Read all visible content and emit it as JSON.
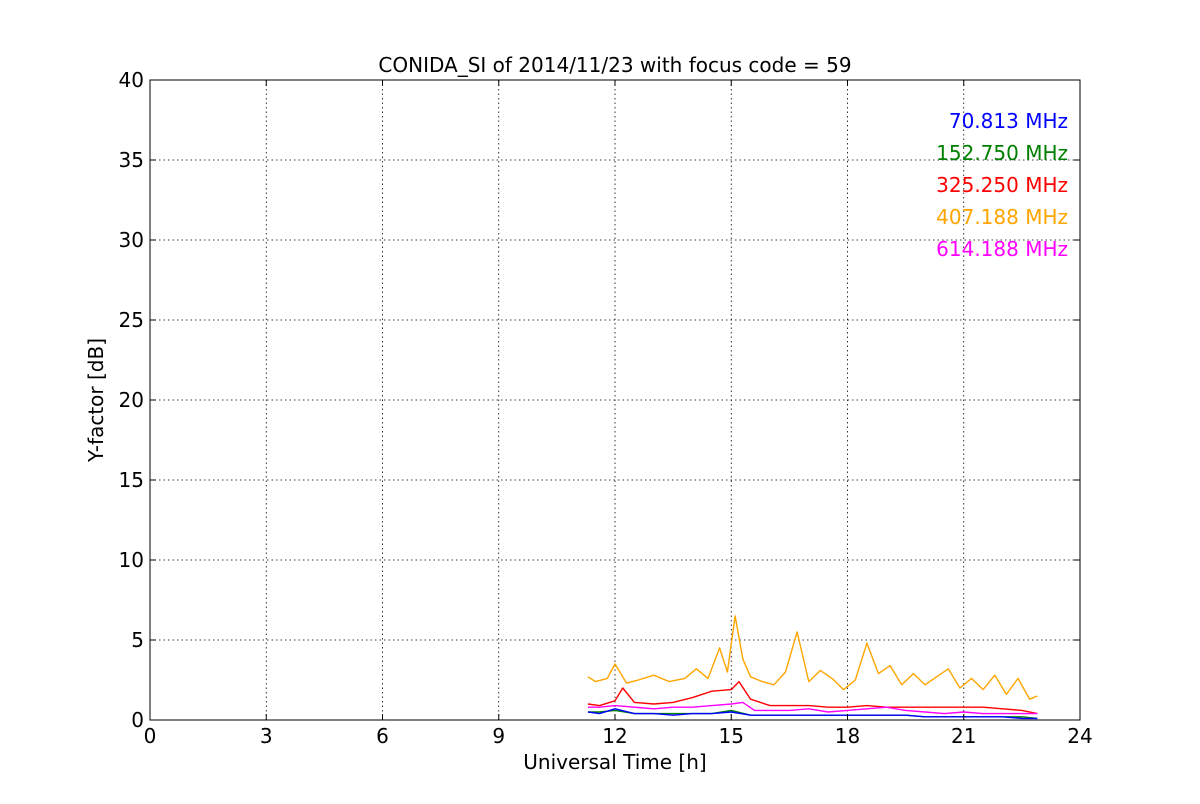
{
  "chart_data": {
    "type": "line",
    "title": "CONIDA_SI of 2014/11/23 with focus code = 59",
    "xlabel": "Universal Time [h]",
    "ylabel": "Y-factor [dB]",
    "xlim": [
      0,
      24
    ],
    "ylim": [
      0,
      40
    ],
    "xticks": [
      0,
      3,
      6,
      9,
      12,
      15,
      18,
      21,
      24
    ],
    "yticks": [
      0,
      5,
      10,
      15,
      20,
      25,
      30,
      35,
      40
    ],
    "grid": true,
    "legend_position": "top-right",
    "series": [
      {
        "name": "70.813 MHz",
        "color": "#0000ff",
        "x": [
          11.3,
          11.6,
          12.0,
          12.5,
          13.0,
          13.5,
          14.0,
          14.5,
          15.0,
          15.5,
          16.0,
          16.5,
          17.0,
          17.5,
          18.0,
          18.5,
          19.0,
          19.5,
          20.0,
          20.5,
          21.0,
          21.5,
          22.0,
          22.5,
          22.9
        ],
        "y": [
          0.5,
          0.4,
          0.7,
          0.4,
          0.4,
          0.3,
          0.4,
          0.4,
          0.5,
          0.3,
          0.3,
          0.3,
          0.3,
          0.3,
          0.3,
          0.3,
          0.3,
          0.3,
          0.2,
          0.2,
          0.2,
          0.2,
          0.2,
          0.1,
          0.1
        ]
      },
      {
        "name": "152.750 MHz",
        "color": "#008000",
        "x": [
          11.3,
          11.6,
          12.0,
          12.5,
          13.0,
          13.5,
          14.0,
          14.5,
          15.0,
          15.5,
          16.0,
          16.5,
          17.0,
          17.5,
          18.0,
          18.5,
          19.0,
          19.5,
          20.0,
          20.5,
          21.0,
          21.5,
          22.0,
          22.5,
          22.9
        ],
        "y": [
          0.5,
          0.5,
          0.6,
          0.4,
          0.4,
          0.4,
          0.4,
          0.4,
          0.6,
          0.3,
          0.3,
          0.3,
          0.3,
          0.3,
          0.3,
          0.3,
          0.3,
          0.3,
          0.2,
          0.2,
          0.2,
          0.2,
          0.2,
          0.2,
          0.1
        ]
      },
      {
        "name": "325.250 MHz",
        "color": "#ff0000",
        "x": [
          11.3,
          11.6,
          12.0,
          12.2,
          12.5,
          13.0,
          13.5,
          14.0,
          14.5,
          15.0,
          15.2,
          15.5,
          16.0,
          16.5,
          17.0,
          17.5,
          18.0,
          18.5,
          19.0,
          19.5,
          20.0,
          20.5,
          21.0,
          21.5,
          22.0,
          22.5,
          22.9
        ],
        "y": [
          1.0,
          0.9,
          1.2,
          2.0,
          1.1,
          1.0,
          1.1,
          1.4,
          1.8,
          1.9,
          2.4,
          1.3,
          0.9,
          0.9,
          0.9,
          0.8,
          0.8,
          0.9,
          0.8,
          0.8,
          0.8,
          0.8,
          0.8,
          0.8,
          0.7,
          0.6,
          0.4
        ]
      },
      {
        "name": "407.188 MHz",
        "color": "#ffa500",
        "x": [
          11.3,
          11.5,
          11.8,
          12.0,
          12.3,
          12.6,
          13.0,
          13.4,
          13.8,
          14.1,
          14.4,
          14.7,
          14.9,
          15.1,
          15.3,
          15.5,
          15.8,
          16.1,
          16.4,
          16.7,
          17.0,
          17.3,
          17.6,
          17.9,
          18.2,
          18.5,
          18.8,
          19.1,
          19.4,
          19.7,
          20.0,
          20.3,
          20.6,
          20.9,
          21.2,
          21.5,
          21.8,
          22.1,
          22.4,
          22.7,
          22.9
        ],
        "y": [
          2.7,
          2.4,
          2.6,
          3.5,
          2.3,
          2.5,
          2.8,
          2.4,
          2.6,
          3.2,
          2.6,
          4.5,
          3.0,
          6.5,
          3.8,
          2.7,
          2.4,
          2.2,
          3.0,
          5.5,
          2.4,
          3.1,
          2.6,
          1.9,
          2.5,
          4.8,
          2.9,
          3.4,
          2.2,
          2.9,
          2.2,
          2.7,
          3.2,
          2.0,
          2.6,
          1.9,
          2.8,
          1.6,
          2.6,
          1.3,
          1.5
        ]
      },
      {
        "name": "614.188 MHz",
        "color": "#ff00ff",
        "x": [
          11.3,
          11.6,
          12.0,
          12.5,
          13.0,
          13.5,
          14.0,
          14.5,
          15.0,
          15.3,
          15.6,
          16.0,
          16.5,
          17.0,
          17.5,
          18.0,
          18.5,
          19.0,
          19.5,
          20.0,
          20.5,
          21.0,
          21.5,
          22.0,
          22.5,
          22.9
        ],
        "y": [
          0.8,
          0.8,
          0.9,
          0.8,
          0.7,
          0.8,
          0.8,
          0.9,
          1.0,
          1.1,
          0.6,
          0.6,
          0.6,
          0.7,
          0.5,
          0.6,
          0.7,
          0.8,
          0.6,
          0.5,
          0.4,
          0.5,
          0.4,
          0.4,
          0.4,
          0.4
        ]
      }
    ]
  }
}
